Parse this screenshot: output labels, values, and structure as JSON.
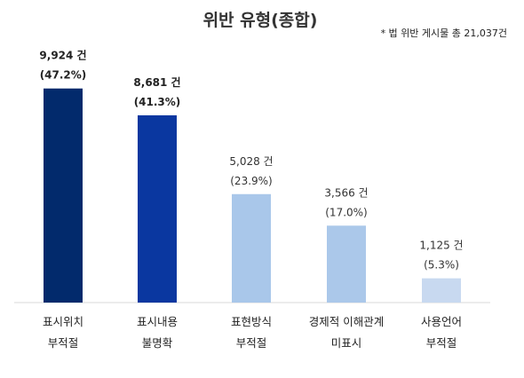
{
  "chart_data": {
    "type": "bar",
    "title": "위반 유형(종합)",
    "note": "* 법 위반 게시물 총 21,037건",
    "categories": [
      [
        "표시위치",
        "부적절"
      ],
      [
        "표시내용",
        "불명확"
      ],
      [
        "표현방식",
        "부적절"
      ],
      [
        "경제적 이해관계",
        "미표시"
      ],
      [
        "사용언어",
        "부적절"
      ]
    ],
    "values": [
      9924,
      8681,
      5028,
      3566,
      1125
    ],
    "value_labels": [
      "9,924 건",
      "8,681 건",
      "5,028 건",
      "3,566 건",
      "1,125 건"
    ],
    "percent_labels": [
      "(47.2%)",
      "(41.3%)",
      "(23.9%)",
      "(17.0%)",
      "(5.3%)"
    ],
    "bold_labels": [
      true,
      true,
      false,
      false,
      false
    ],
    "colors": [
      "#022a6c",
      "#0a37a0",
      "#a9c7ea",
      "#abc8ea",
      "#c8d9f0"
    ],
    "ylim": [
      0,
      10900
    ],
    "xlabel": "",
    "ylabel": "",
    "grid": false,
    "legend": "none"
  }
}
